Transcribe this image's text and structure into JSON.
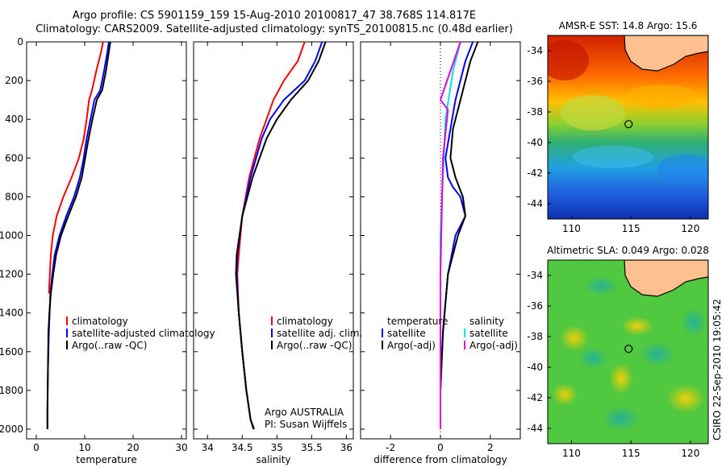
{
  "header": {
    "line1": "Argo profile: CS 5901159_159 15-Aug-2010 20100817_47 38.768S 114.817E",
    "line2": "Climatology: CARS2009. Satellite-adjusted climatology: synTS_20100815.nc (0.48d earlier)"
  },
  "colors": {
    "climatology": "#ff0000",
    "satellite": "#0000ff",
    "argo": "#000000",
    "sat_salinity": "#00e0e0",
    "argo_salinity": "#e000e0"
  },
  "credit": "CSIRO 22-Sep-2010 19:05:42",
  "argo_note": [
    "Argo AUSTRALIA",
    "PI: Susan Wijffels"
  ],
  "chart_data": [
    {
      "type": "line",
      "xlabel": "temperature",
      "ylabel": "",
      "ylim": [
        2050,
        0
      ],
      "xlim": [
        -2,
        31
      ],
      "xticks": [
        "0",
        "10",
        "20",
        "30"
      ],
      "xtick_values": [
        0,
        10,
        20,
        30
      ],
      "yticks": [
        "0",
        "200",
        "400",
        "600",
        "800",
        "1000",
        "1200",
        "1400",
        "1600",
        "1800",
        "2000"
      ],
      "legend": [
        "climatology",
        "satellite-adjusted climatology",
        "Argo(..raw -QC)"
      ],
      "series": [
        {
          "name": "climatology",
          "color": "#ff0000",
          "x": [
            13.8,
            13.4,
            12.4,
            11.5,
            10.9,
            10.4,
            9.8,
            8.8,
            7.3,
            5.6,
            4.2,
            3.4,
            3.0,
            2.8,
            2.6
          ],
          "y": [
            0,
            50,
            150,
            250,
            300,
            400,
            500,
            600,
            700,
            800,
            900,
            1000,
            1100,
            1200,
            1300
          ]
        },
        {
          "name": "satellite-adjusted climatology",
          "color": "#0000ff",
          "x": [
            15.0,
            14.7,
            14.0,
            13.2,
            12.0,
            11.2,
            10.4,
            9.8,
            9.0,
            7.8,
            6.2,
            4.8,
            3.8,
            3.3,
            2.9,
            2.6,
            2.4,
            2.3,
            2.3
          ],
          "y": [
            0,
            50,
            150,
            250,
            300,
            400,
            500,
            600,
            700,
            800,
            900,
            1000,
            1100,
            1200,
            1300,
            1500,
            1700,
            1900,
            2000
          ]
        },
        {
          "name": "Argo(..raw -QC)",
          "color": "#000000",
          "x": [
            15.3,
            15.0,
            14.4,
            13.6,
            12.5,
            11.6,
            10.8,
            10.1,
            9.4,
            8.2,
            6.6,
            5.1,
            4.1,
            3.5,
            3.0,
            2.7,
            2.5,
            2.4,
            2.3,
            2.3
          ],
          "y": [
            0,
            50,
            150,
            250,
            300,
            400,
            500,
            600,
            700,
            800,
            900,
            1000,
            1100,
            1200,
            1300,
            1400,
            1500,
            1700,
            1900,
            2000
          ]
        }
      ]
    },
    {
      "type": "line",
      "xlabel": "salinity",
      "ylabel": "",
      "ylim": [
        2050,
        0
      ],
      "xlim": [
        33.8,
        36.1
      ],
      "xticks": [
        "34",
        "34.5",
        "35",
        "35.5",
        "36"
      ],
      "xtick_values": [
        34,
        34.5,
        35,
        35.5,
        36
      ],
      "legend": [
        "climatology",
        "satellite adj. clim.",
        "Argo(..raw -QC)"
      ],
      "series": [
        {
          "name": "climatology",
          "color": "#ff0000",
          "x": [
            35.4,
            35.3,
            35.1,
            34.95,
            34.85,
            34.75,
            34.6,
            34.5,
            34.45,
            34.43,
            34.45,
            34.5,
            34.56,
            34.62,
            34.66
          ],
          "y": [
            0,
            100,
            200,
            300,
            400,
            500,
            700,
            900,
            1100,
            1200,
            1400,
            1600,
            1800,
            1950,
            2000
          ]
        },
        {
          "name": "satellite adj. clim.",
          "color": "#0000ff",
          "x": [
            35.65,
            35.55,
            35.4,
            35.1,
            34.9,
            34.78,
            34.62,
            34.5,
            34.43,
            34.42,
            34.45,
            34.5,
            34.56,
            34.62,
            34.67
          ],
          "y": [
            0,
            100,
            200,
            300,
            400,
            500,
            700,
            900,
            1100,
            1200,
            1400,
            1600,
            1800,
            1950,
            2000
          ]
        },
        {
          "name": "Argo(..raw -QC)",
          "color": "#000000",
          "x": [
            35.7,
            35.6,
            35.45,
            35.2,
            35.0,
            34.85,
            34.65,
            34.5,
            34.42,
            34.41,
            34.45,
            34.5,
            34.56,
            34.62,
            34.67
          ],
          "y": [
            0,
            100,
            200,
            300,
            400,
            500,
            700,
            900,
            1100,
            1200,
            1400,
            1600,
            1800,
            1950,
            2000
          ]
        }
      ]
    },
    {
      "type": "line",
      "xlabel": "difference from climatology",
      "ylabel": "",
      "ylim": [
        2050,
        0
      ],
      "xlim": [
        -3.2,
        3.2
      ],
      "xticks": [
        "-2",
        "0",
        "2"
      ],
      "xtick_values": [
        -2,
        0,
        2
      ],
      "legend_temperature": [
        "temperature",
        "satellite",
        "Argo(-adj)"
      ],
      "legend_salinity": [
        "salinity",
        "satellite",
        "Argo(-adj)"
      ],
      "series": [
        {
          "name": "temperature satellite",
          "color": "#0000ff",
          "x": [
            1.3,
            1.0,
            0.6,
            0.4,
            0.2,
            0.3,
            0.5,
            0.8,
            1.0,
            0.6,
            0.3,
            0.1,
            0.0,
            0.0
          ],
          "y": [
            0,
            100,
            300,
            450,
            600,
            700,
            750,
            800,
            900,
            1000,
            1200,
            1500,
            1800,
            2000
          ]
        },
        {
          "name": "temperature Argo(-adj)",
          "color": "#000000",
          "x": [
            1.5,
            1.2,
            0.8,
            0.5,
            0.4,
            0.6,
            0.9,
            1.0,
            0.7,
            0.3,
            0.1,
            0.0,
            0.0
          ],
          "y": [
            0,
            100,
            300,
            450,
            600,
            700,
            800,
            900,
            1000,
            1200,
            1500,
            1800,
            2000
          ]
        },
        {
          "name": "salinity satellite",
          "color": "#00e0e0",
          "x": [
            0.8,
            0.5,
            0.2,
            0.1,
            0.0,
            0.0,
            0.0
          ],
          "y": [
            0,
            150,
            400,
            700,
            1000,
            1500,
            2000
          ]
        },
        {
          "name": "salinity Argo(-adj)",
          "color": "#e000e0",
          "x": [
            0.8,
            0.4,
            0.0,
            0.3,
            0.1,
            0.0,
            0.0
          ],
          "y": [
            0,
            150,
            300,
            350,
            600,
            1200,
            2000
          ]
        }
      ]
    },
    {
      "type": "heatmap",
      "title": "AMSR-E SST: 14.8 Argo: 15.6",
      "xlim": [
        108,
        121.5
      ],
      "ylim": [
        -45,
        -33
      ],
      "xticks": [
        "110",
        "115",
        "120"
      ],
      "xtick_values": [
        110,
        115,
        120
      ],
      "yticks": [
        "-34",
        "-36",
        "-38",
        "-40",
        "-42",
        "-44"
      ],
      "ytick_values": [
        -34,
        -36,
        -38,
        -40,
        -42,
        -44
      ],
      "marker": {
        "lon": 114.8,
        "lat": -38.8
      }
    },
    {
      "type": "heatmap",
      "title": "Altimetric SLA: 0.049 Argo: 0.028",
      "xlim": [
        108,
        121.5
      ],
      "ylim": [
        -45,
        -33
      ],
      "xticks": [
        "110",
        "115",
        "120"
      ],
      "xtick_values": [
        110,
        115,
        120
      ],
      "yticks": [
        "-34",
        "-36",
        "-38",
        "-40",
        "-42",
        "-44"
      ],
      "ytick_values": [
        -34,
        -36,
        -38,
        -40,
        -42,
        -44
      ],
      "marker": {
        "lon": 114.8,
        "lat": -38.8
      }
    }
  ]
}
